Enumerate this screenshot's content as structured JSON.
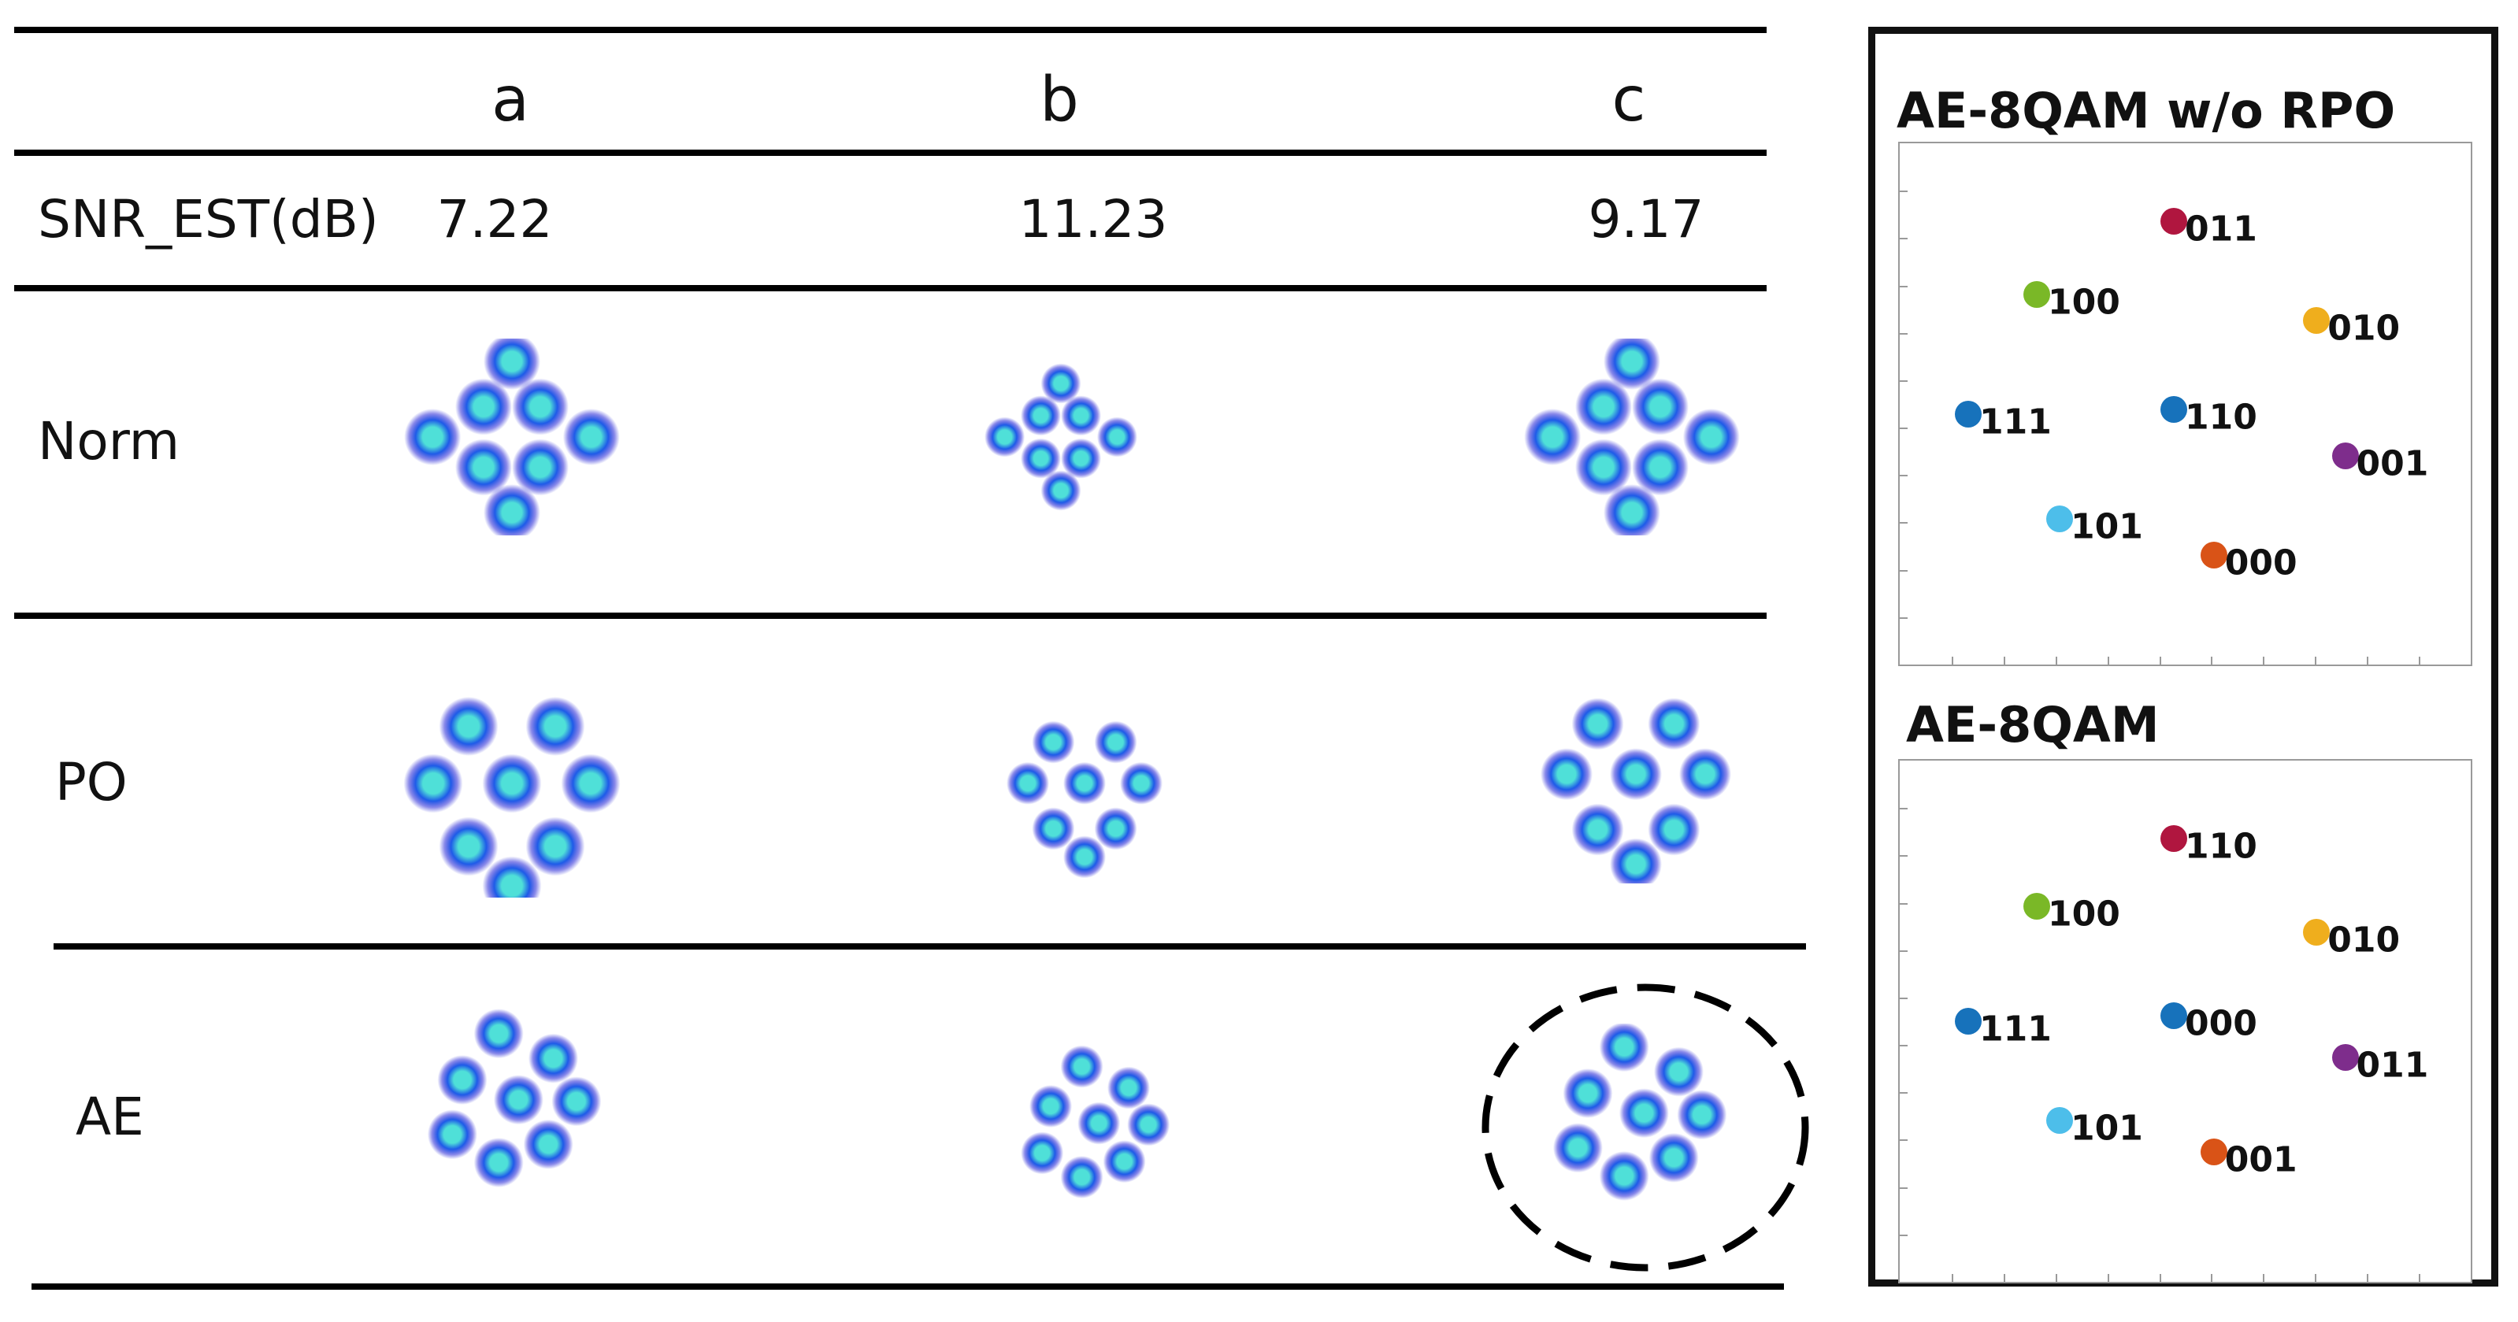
{
  "table": {
    "columns": [
      "a",
      "b",
      "c"
    ],
    "snr_label": "SNR_EST(dB)",
    "snr_values": [
      "7.22",
      "11.23",
      "9.17"
    ],
    "rows": [
      "Norm",
      "PO",
      "AE"
    ],
    "highlighted_cell": {
      "row": "AE",
      "column": "c"
    }
  },
  "constellation_colors": {
    "core": "#4fe0d8",
    "ring": "#1e5be8",
    "halo": "#2b2bd8"
  },
  "panels": [
    {
      "title": "AE-8QAM w/o RPO",
      "points": [
        {
          "label": "011",
          "color": "#b0163f"
        },
        {
          "label": "100",
          "color": "#7ab827"
        },
        {
          "label": "010",
          "color": "#efae1d"
        },
        {
          "label": "111",
          "color": "#1772bb"
        },
        {
          "label": "110",
          "color": "#1772bb"
        },
        {
          "label": "001",
          "color": "#7e2d8c"
        },
        {
          "label": "101",
          "color": "#4dbeea"
        },
        {
          "label": "000",
          "color": "#d95317"
        }
      ]
    },
    {
      "title": "AE-8QAM",
      "points": [
        {
          "label": "110",
          "color": "#b0163f"
        },
        {
          "label": "100",
          "color": "#7ab827"
        },
        {
          "label": "010",
          "color": "#efae1d"
        },
        {
          "label": "111",
          "color": "#1772bb"
        },
        {
          "label": "000",
          "color": "#1772bb"
        },
        {
          "label": "011",
          "color": "#7e2d8c"
        },
        {
          "label": "101",
          "color": "#4dbeea"
        },
        {
          "label": "001",
          "color": "#d95317"
        }
      ]
    }
  ]
}
